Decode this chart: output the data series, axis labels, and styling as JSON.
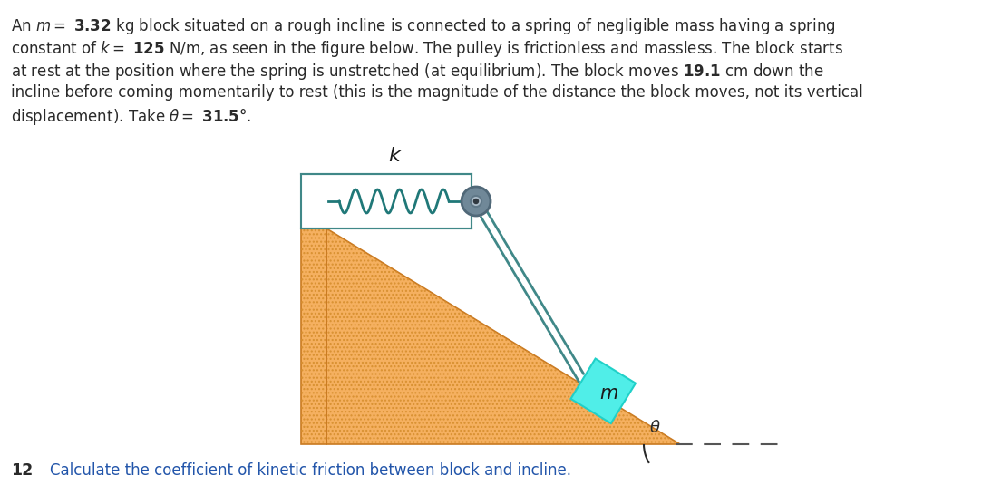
{
  "bg_color": "#ffffff",
  "text_color": "#2a2a2a",
  "blue_text_color": "#2255aa",
  "incline_color": "#f5b060",
  "incline_edge_color": "#c87820",
  "block_color": "#50eee8",
  "block_edge_color": "#20d0c8",
  "spring_color": "#207878",
  "rope_color": "#408888",
  "pulley_outer_color": "#607888",
  "pulley_inner_color": "#88aaaa",
  "wall_color": "#f5b060",
  "wall_edge_color": "#c87820",
  "ground_dash_color": "#555555",
  "theta_deg": 31.5,
  "fig_width": 10.83,
  "fig_height": 5.46,
  "dpi": 100,
  "text_lines": [
    "An $m = $ $\\mathbf{3.32}$ kg block situated on a rough incline is connected to a spring of negligible mass having a spring",
    "constant of $k = $ $\\mathbf{125}$ N/m, as seen in the figure below. The pulley is frictionless and massless. The block starts",
    "at rest at the position where the spring is unstretched (at equilibrium). The block moves $\\mathbf{19.1}$ cm down the",
    "incline before coming momentarily to rest (this is the magnitude of the distance the block moves, not its vertical",
    "displacement). Take $\\theta = $ $\\mathbf{31.5°}$."
  ],
  "q_num": "12",
  "q_text": "Calculate the coefficient of kinetic friction between block and incline."
}
